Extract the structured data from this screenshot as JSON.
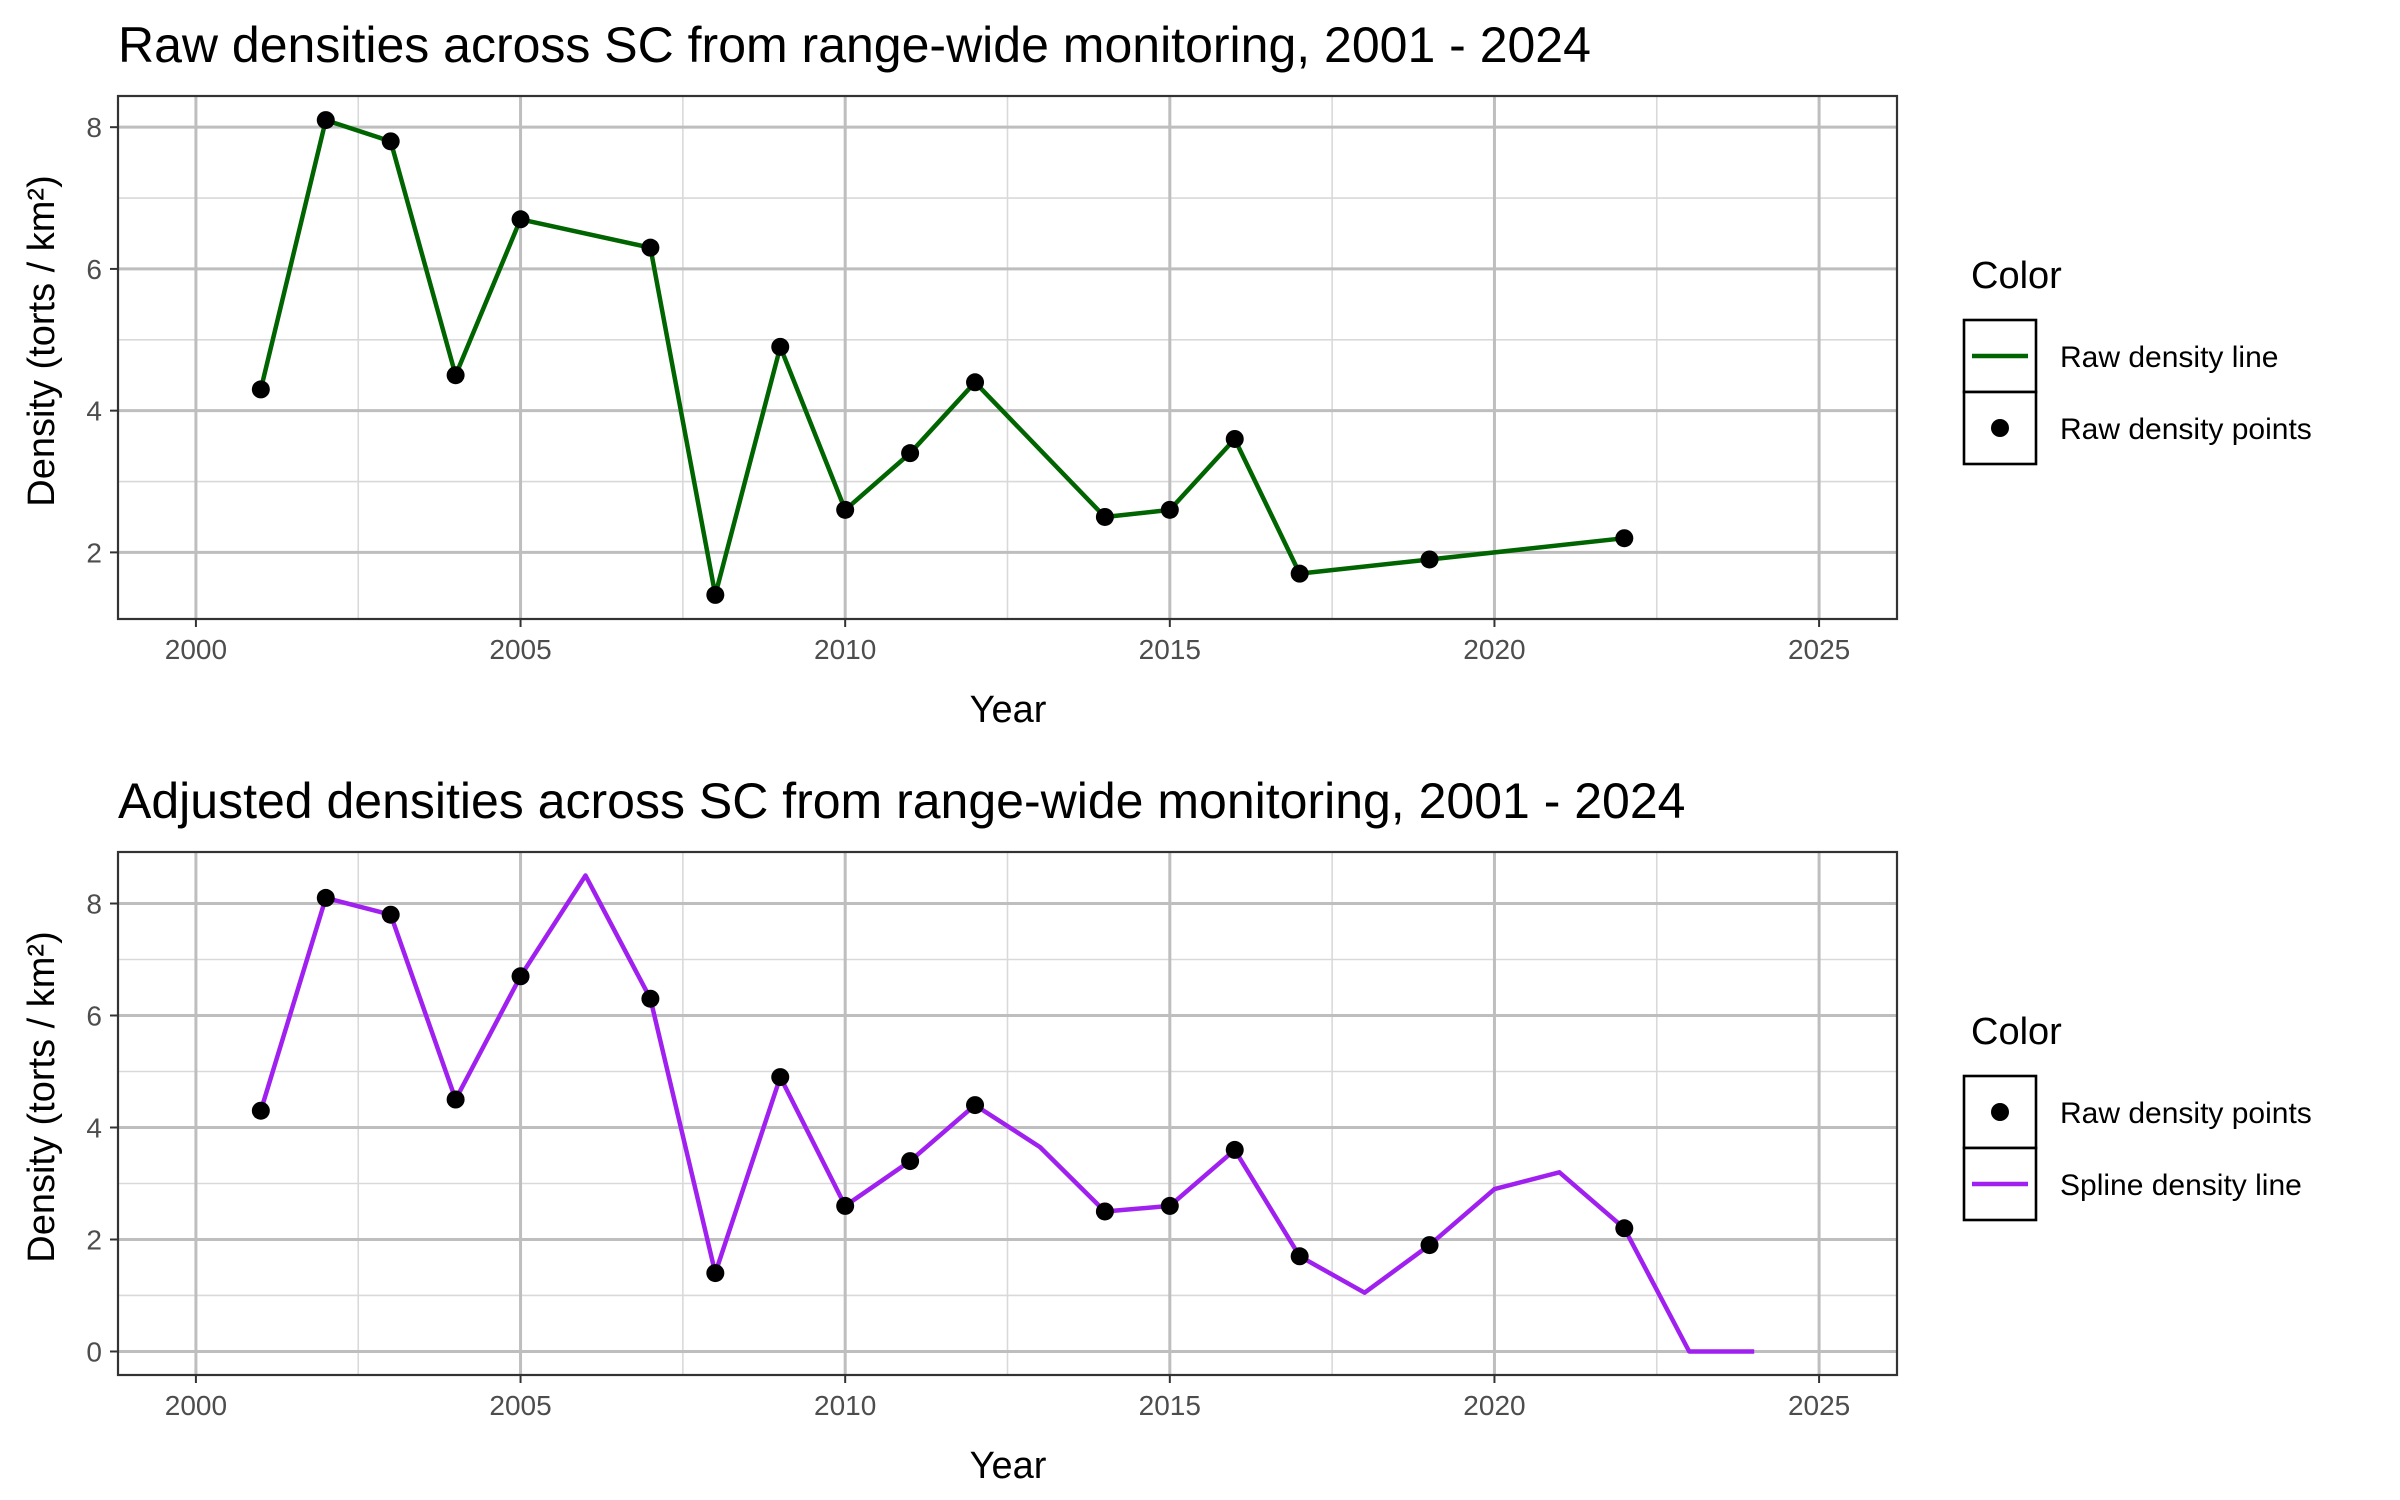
{
  "chart_data": [
    {
      "type": "line",
      "title": "Raw densities across SC from range-wide monitoring, 2001 - 2024",
      "xlabel": "Year",
      "ylabel": "Density (torts / km²)",
      "xlim": [
        1998.8,
        2026.2
      ],
      "ylim": [
        1.06,
        8.44
      ],
      "x_ticks": [
        2000,
        2005,
        2010,
        2015,
        2020,
        2025
      ],
      "y_ticks": [
        2,
        4,
        6,
        8
      ],
      "grid": true,
      "legend_position": "right",
      "legend_title": "Color",
      "legend_entries": [
        {
          "label": "Raw density line",
          "kind": "line",
          "color": "#006400"
        },
        {
          "label": "Raw density points",
          "kind": "point",
          "color": "#000000"
        }
      ],
      "series": [
        {
          "name": "Raw density line",
          "kind": "line",
          "color": "#006400",
          "x": [
            2001,
            2002,
            2003,
            2004,
            2005,
            2007,
            2008,
            2009,
            2010,
            2011,
            2012,
            2014,
            2015,
            2016,
            2017,
            2019,
            2022
          ],
          "y": [
            4.3,
            8.1,
            7.8,
            4.5,
            6.7,
            6.3,
            1.4,
            4.9,
            2.6,
            3.4,
            4.4,
            2.5,
            2.6,
            3.6,
            1.7,
            1.9,
            2.2
          ]
        },
        {
          "name": "Raw density points",
          "kind": "point",
          "color": "#000000",
          "x": [
            2001,
            2002,
            2003,
            2004,
            2005,
            2007,
            2008,
            2009,
            2010,
            2011,
            2012,
            2014,
            2015,
            2016,
            2017,
            2019,
            2022
          ],
          "y": [
            4.3,
            8.1,
            7.8,
            4.5,
            6.7,
            6.3,
            1.4,
            4.9,
            2.6,
            3.4,
            4.4,
            2.5,
            2.6,
            3.6,
            1.7,
            1.9,
            2.2
          ]
        }
      ]
    },
    {
      "type": "line",
      "title": "Adjusted densities across SC from range-wide monitoring, 2001 - 2024",
      "xlabel": "Year",
      "ylabel": "Density (torts / km²)",
      "xlim": [
        1998.8,
        2026.2
      ],
      "ylim": [
        -0.42,
        8.92
      ],
      "x_ticks": [
        2000,
        2005,
        2010,
        2015,
        2020,
        2025
      ],
      "y_ticks": [
        0,
        2,
        4,
        6,
        8
      ],
      "grid": true,
      "legend_position": "right",
      "legend_title": "Color",
      "legend_entries": [
        {
          "label": "Raw density points",
          "kind": "point",
          "color": "#000000"
        },
        {
          "label": "Spline density line",
          "kind": "line",
          "color": "#a020f0"
        }
      ],
      "series": [
        {
          "name": "Spline density line",
          "kind": "line",
          "color": "#a020f0",
          "x": [
            2001,
            2002,
            2003,
            2004,
            2005,
            2006,
            2007,
            2008,
            2009,
            2010,
            2011,
            2012,
            2013,
            2014,
            2015,
            2016,
            2017,
            2018,
            2019,
            2020,
            2021,
            2022,
            2023,
            2024
          ],
          "y": [
            4.3,
            8.1,
            7.8,
            4.5,
            6.7,
            8.5,
            6.3,
            1.4,
            4.9,
            2.6,
            3.4,
            4.4,
            3.65,
            2.5,
            2.6,
            3.6,
            1.7,
            1.05,
            1.9,
            2.9,
            3.2,
            2.2,
            0,
            0
          ]
        },
        {
          "name": "Raw density points",
          "kind": "point",
          "color": "#000000",
          "x": [
            2001,
            2002,
            2003,
            2004,
            2005,
            2007,
            2008,
            2009,
            2010,
            2011,
            2012,
            2014,
            2015,
            2016,
            2017,
            2019,
            2022
          ],
          "y": [
            4.3,
            8.1,
            7.8,
            4.5,
            6.7,
            6.3,
            1.4,
            4.9,
            2.6,
            3.4,
            4.4,
            2.5,
            2.6,
            3.6,
            1.7,
            1.9,
            2.2
          ]
        }
      ]
    }
  ]
}
